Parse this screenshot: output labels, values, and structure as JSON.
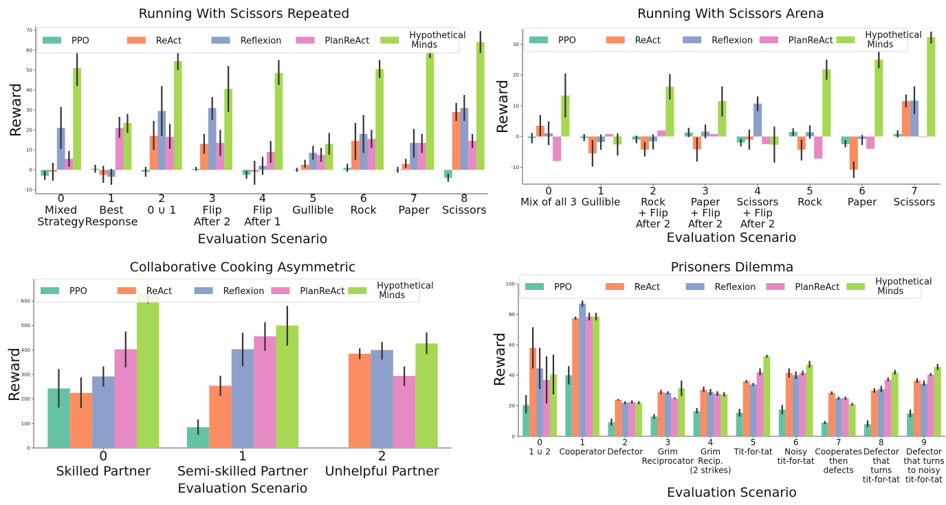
{
  "series_colors": {
    "PPO": "#66c2a5",
    "ReAct": "#fc8d62",
    "Reflexion": "#8da0cb",
    "PlanReAct": "#e78ac3",
    "Hypothetical Minds": "#a6d854"
  },
  "chart_data": [
    {
      "id": "rws-repeated",
      "type": "bar",
      "title": "Running With Scissors Repeated",
      "xlabel": "Evaluation Scenario",
      "ylabel": "Reward",
      "ylim": [
        -12,
        72
      ],
      "yticks": [
        -10,
        0,
        10,
        20,
        30,
        40,
        50,
        60,
        70
      ],
      "grid": false,
      "legend": {
        "position": "top",
        "entries": [
          "PPO",
          "ReAct",
          "Reflexion",
          "PlanReAct",
          "Hypothetical\nMinds"
        ]
      },
      "categories": [
        [
          "0",
          "Mixed",
          "Strategy"
        ],
        [
          "1",
          "Best",
          "Response"
        ],
        [
          "2",
          "0 ∪ 1"
        ],
        [
          "3",
          "Flip",
          "After 2"
        ],
        [
          "4",
          "Flip",
          "After 1"
        ],
        [
          "5",
          "Gullible"
        ],
        [
          "6",
          "Rock"
        ],
        [
          "7",
          "Paper"
        ],
        [
          "8",
          "Scissors"
        ]
      ],
      "series": [
        {
          "name": "PPO",
          "values": [
            -3,
            0.5,
            -1,
            0.5,
            -2.5,
            0,
            1,
            0,
            -4
          ],
          "err_low": [
            -5,
            -1.5,
            -3.5,
            -0.5,
            -4.5,
            -1,
            -1,
            -1.5,
            -6
          ],
          "err_high": [
            -0.5,
            2.5,
            1.5,
            1.5,
            -0.5,
            1,
            3,
            1.5,
            -2
          ]
        },
        {
          "name": "ReAct",
          "values": [
            -1,
            -2.5,
            17,
            13,
            -1,
            2.5,
            14.5,
            3,
            29
          ],
          "err_low": [
            -5.5,
            -6.5,
            10,
            8,
            -7.5,
            1,
            5,
            1,
            24.5
          ],
          "err_high": [
            3.5,
            2,
            24.5,
            18,
            4.5,
            5,
            23.5,
            5.5,
            33.5
          ]
        },
        {
          "name": "Reflexion",
          "values": [
            21,
            -3.5,
            29.5,
            31,
            2,
            8.5,
            18,
            13.5,
            31
          ],
          "err_low": [
            10.5,
            -7.5,
            17,
            25,
            -2.5,
            5,
            8.5,
            6,
            24.5
          ],
          "err_high": [
            31.5,
            0.5,
            42,
            36.5,
            6.5,
            12,
            27.5,
            20.5,
            37.5
          ]
        },
        {
          "name": "PlanReAct",
          "values": [
            5.5,
            21,
            16.5,
            13.5,
            9,
            7.5,
            15.5,
            13.5,
            14.5
          ],
          "err_low": [
            1.5,
            16,
            10.5,
            7,
            3.5,
            4,
            11,
            8.5,
            11
          ],
          "err_high": [
            9.5,
            26.5,
            23,
            20,
            14.5,
            11,
            20,
            18,
            18
          ]
        },
        {
          "name": "Hypothetical Minds",
          "values": [
            51,
            23.5,
            54.5,
            40.5,
            48.5,
            13,
            50.5,
            59.5,
            64
          ],
          "err_low": [
            42,
            18.5,
            50,
            29,
            42.5,
            7.5,
            46,
            56,
            58.5
          ],
          "err_high": [
            59.5,
            28,
            59,
            52,
            55,
            18.5,
            55,
            65,
            69.5
          ]
        }
      ]
    },
    {
      "id": "rws-arena",
      "type": "bar",
      "title": "Running With Scissors Arena",
      "xlabel": "Evaluation Scenario",
      "ylabel": "Reward",
      "ylim": [
        -15.5,
        35
      ],
      "yticks": [
        -10,
        0,
        10,
        20,
        30
      ],
      "grid": false,
      "legend": {
        "position": "top",
        "entries": [
          "PPO",
          "ReAct",
          "Reflexion",
          "PlanReAct",
          "Hypothetical\nMinds"
        ]
      },
      "categories": [
        [
          "0",
          "Mix of all 3"
        ],
        [
          "1",
          "Gullible"
        ],
        [
          "2",
          "Rock",
          "+ Flip",
          "After 2"
        ],
        [
          "3",
          "Paper",
          "+ Flip",
          "After 2"
        ],
        [
          "4",
          "Scissors",
          "+ Flip",
          "After 2"
        ],
        [
          "5",
          "Rock"
        ],
        [
          "6",
          "Paper"
        ],
        [
          "7",
          "Scissors"
        ]
      ],
      "series": [
        {
          "name": "PPO",
          "values": [
            -0.5,
            -0.5,
            -1,
            1.3,
            -2,
            1.5,
            -2.5,
            0.8
          ],
          "err_low": [
            -2.2,
            -1.5,
            -2.2,
            -0.2,
            -3.2,
            0.2,
            -3.5,
            -0.3
          ],
          "err_high": [
            1.2,
            0.8,
            0.3,
            2.8,
            -0.8,
            2.7,
            -1.2,
            2
          ]
        },
        {
          "name": "ReAct",
          "values": [
            3.5,
            -5.5,
            -4.3,
            -4.2,
            -1,
            -4.3,
            -10.8,
            11.5
          ],
          "err_low": [
            0,
            -9.8,
            -6.5,
            -8.2,
            -4.3,
            -7.8,
            -13.5,
            9.5
          ],
          "err_high": [
            7,
            -1.2,
            -1.8,
            -0.3,
            2.2,
            -1,
            -8.2,
            13.6
          ]
        },
        {
          "name": "Reflexion",
          "values": [
            1,
            -1.8,
            -1.6,
            1.6,
            10.7,
            1.4,
            -0.8,
            11.7
          ],
          "err_low": [
            -2.8,
            -4.3,
            -4.2,
            -0.6,
            8.2,
            -0.8,
            -2.8,
            7.2
          ],
          "err_high": [
            4.9,
            0.7,
            0.7,
            3.9,
            13,
            3.6,
            0.5,
            16.3
          ]
        },
        {
          "name": "PlanReAct",
          "values": [
            -8,
            0.8,
            2,
            0.8,
            -2.5,
            -7.2,
            -4,
            -0.2
          ],
          "err_low": [
            -12.5,
            -3,
            -1.5,
            -3,
            -5.8,
            -9.3,
            -7.4,
            -3
          ]
        },
        {
          "name": "Hypothetical Minds",
          "values": [
            13.3,
            -2.6,
            16.2,
            11.5,
            -2.7,
            21.8,
            25,
            32.3
          ],
          "err_low": [
            6.2,
            -6.2,
            12,
            6.5,
            -8.5,
            18.5,
            22.2,
            30.2
          ],
          "err_high": [
            20.5,
            1,
            20.3,
            16.3,
            3.2,
            25,
            27.5,
            34.1
          ]
        }
      ]
    },
    {
      "id": "cooking-asymmetric",
      "type": "bar",
      "title": "Collaborative Cooking Asymmetric",
      "xlabel": "Evaluation Scenario",
      "ylabel": "Reward",
      "ylim": [
        0,
        690
      ],
      "yticks": [
        0,
        100,
        200,
        300,
        400,
        500,
        600
      ],
      "grid": false,
      "legend": {
        "position": "top",
        "entries": [
          "PPO",
          "ReAct",
          "Reflexion",
          "PlanReAct",
          "Hypothetical\nMinds"
        ]
      },
      "categories": [
        [
          "0",
          "Skilled Partner"
        ],
        [
          "1",
          "Semi-skilled Partner"
        ],
        [
          "2",
          "Unhelpful Partner"
        ]
      ],
      "series": [
        {
          "name": "PPO",
          "values": [
            243,
            85,
            null
          ],
          "err_low": [
            165,
            55,
            null
          ],
          "err_high": [
            322,
            117,
            null
          ]
        },
        {
          "name": "ReAct",
          "values": [
            225,
            254,
            385
          ],
          "err_low": [
            163,
            213,
            362
          ],
          "err_high": [
            288,
            295,
            407
          ]
        },
        {
          "name": "Reflexion",
          "values": [
            292,
            403,
            400
          ],
          "err_low": [
            251,
            334,
            361
          ],
          "err_high": [
            333,
            470,
            433
          ]
        },
        {
          "name": "PlanReAct",
          "values": [
            403,
            456,
            294
          ],
          "err_low": [
            329,
            397,
            253
          ],
          "err_high": [
            475,
            513,
            333
          ]
        },
        {
          "name": "Hypothetical Minds",
          "values": [
            630,
            500,
            427
          ],
          "err_low": [
            590,
            418,
            383
          ],
          "err_high": [
            670,
            580,
            472
          ]
        }
      ]
    },
    {
      "id": "prisoners-dilemma",
      "type": "bar",
      "title": "Prisoners Dilemma",
      "xlabel": "Evaluation Scenario",
      "ylabel": "Reward",
      "ylim": [
        0,
        100
      ],
      "yticks": [
        0,
        20,
        40,
        60,
        80,
        100
      ],
      "grid": false,
      "legend": {
        "position": "top",
        "entries": [
          "PPO",
          "ReAct",
          "Reflexion",
          "PlanReAct",
          "Hypothetical\nMinds"
        ]
      },
      "categories": [
        [
          "0",
          "1 ∪ 2"
        ],
        [
          "1",
          "Cooperator"
        ],
        [
          "2",
          "Defector"
        ],
        [
          "3",
          "Grim",
          "Reciprocator"
        ],
        [
          "4",
          "Grim",
          "Recip.",
          "(2 strikes)"
        ],
        [
          "5",
          "Tit-for-tat"
        ],
        [
          "6",
          "Noisy",
          "tit-for-tat"
        ],
        [
          "7",
          "Cooperates",
          "then",
          "defects"
        ],
        [
          "8",
          "Defector",
          "that",
          "turns",
          "tit-for-tat"
        ],
        [
          "9",
          "Defector",
          "that turns",
          "to noisy",
          "tit-for-tat"
        ]
      ],
      "series": [
        {
          "name": "PPO",
          "values": [
            20.5,
            40,
            9.2,
            13,
            16.5,
            15.5,
            17.5,
            9,
            8,
            15
          ],
          "err_low": [
            15,
            34,
            7,
            11.5,
            15,
            13,
            14.5,
            8,
            6,
            12.5
          ],
          "err_high": [
            27,
            46,
            11.5,
            14.5,
            18.5,
            18,
            20.5,
            10,
            10.5,
            17.5
          ]
        },
        {
          "name": "ReAct",
          "values": [
            58,
            77.5,
            24,
            29,
            30.5,
            36,
            41.5,
            28.5,
            30,
            36.5
          ],
          "err_low": [
            44.5,
            76.5,
            23.5,
            27.5,
            29,
            35,
            38.5,
            27.5,
            28.5,
            35
          ],
          "err_high": [
            71.5,
            78.5,
            24.5,
            30.5,
            32.5,
            37,
            44.5,
            29.5,
            31.5,
            38
          ]
        },
        {
          "name": "Reflexion",
          "values": [
            44.5,
            87,
            22,
            28.5,
            29,
            34,
            40,
            25,
            31,
            34.5
          ],
          "err_low": [
            31,
            85,
            21,
            27.5,
            27,
            33,
            37.5,
            24,
            29,
            33
          ],
          "err_high": [
            58,
            89,
            23,
            29.5,
            31,
            35,
            42.5,
            26,
            33,
            36.5
          ]
        },
        {
          "name": "PlanReAct",
          "values": [
            37,
            78.5,
            22.5,
            25,
            28,
            42,
            41.5,
            25,
            37,
            40.5
          ],
          "err_low": [
            21.5,
            76,
            21.5,
            24.5,
            26.5,
            40,
            40,
            24,
            36,
            39.5
          ],
          "err_high": [
            52.5,
            81,
            23.5,
            25.5,
            29.5,
            44.5,
            43,
            26,
            38.5,
            41.5
          ]
        },
        {
          "name": "Hypothetical Minds",
          "values": [
            40.5,
            78.5,
            22,
            31.5,
            27.5,
            52.5,
            47,
            21,
            42,
            45.5
          ],
          "err_low": [
            27.5,
            76,
            21,
            26.5,
            26,
            51.5,
            45,
            20,
            40.5,
            43.5
          ],
          "err_high": [
            53.5,
            81,
            23,
            36.5,
            29,
            53.5,
            49.5,
            22,
            43.5,
            47.5
          ]
        }
      ]
    }
  ]
}
